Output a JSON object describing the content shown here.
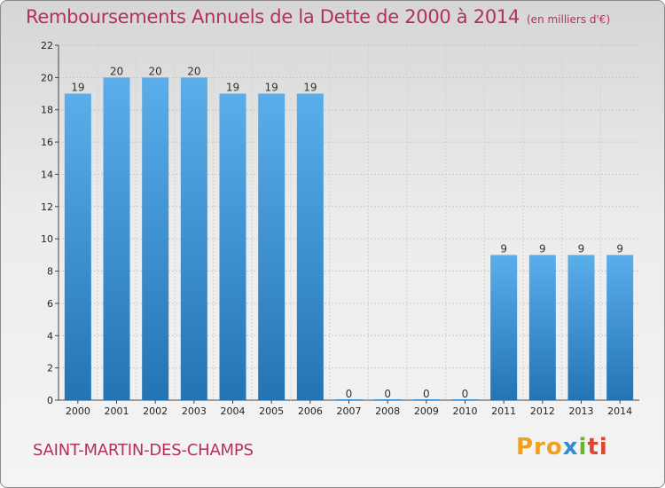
{
  "title": "Remboursements Annuels de la Dette de 2000 à 2014",
  "unit_note": "(en milliers d'€)",
  "commune": "SAINT-MARTIN-DES-CHAMPS",
  "logo": {
    "text": "Proxiti",
    "colors": [
      "#f0a020",
      "#2e8bd6",
      "#6ab42c",
      "#e0452f"
    ]
  },
  "colors": {
    "title": "#b4305a",
    "bar_top": "#5aaeea",
    "bar_bottom": "#2374b4"
  },
  "chart_data": {
    "type": "bar",
    "categories": [
      "2000",
      "2001",
      "2002",
      "2003",
      "2004",
      "2005",
      "2006",
      "2007",
      "2008",
      "2009",
      "2010",
      "2011",
      "2012",
      "2013",
      "2014"
    ],
    "values": [
      19,
      20,
      20,
      20,
      19,
      19,
      19,
      0,
      0,
      0,
      0,
      9,
      9,
      9,
      9
    ],
    "labels": [
      "19",
      "20",
      "20",
      "20",
      "19",
      "19",
      "19",
      "0",
      "0",
      "0",
      "0",
      "9",
      "9",
      "9",
      "9"
    ],
    "ylim": [
      0,
      22
    ],
    "yticks": [
      0,
      2,
      4,
      6,
      8,
      10,
      12,
      14,
      16,
      18,
      20,
      22
    ],
    "grid": true,
    "legend": "none"
  }
}
